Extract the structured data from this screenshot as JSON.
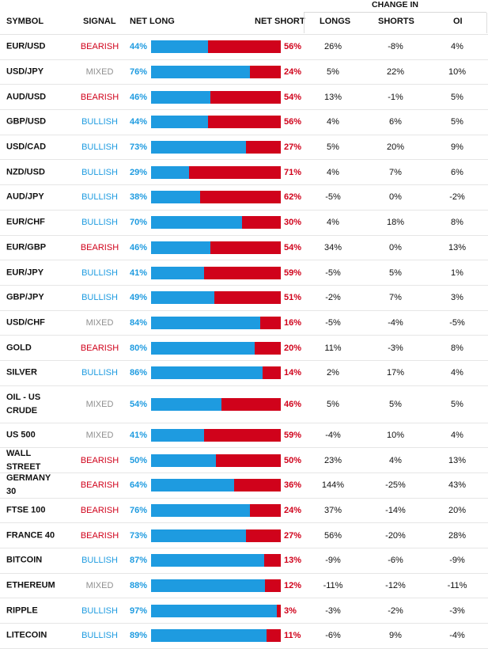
{
  "colors": {
    "bullish": "#1e9be0",
    "bearish": "#d0021b",
    "mixed": "#8f8f8f"
  },
  "header": {
    "symbol": "SYMBOL",
    "signal": "SIGNAL",
    "net_long": "NET LONG",
    "net_short": "NET SHORT",
    "change_in": "CHANGE IN",
    "longs": "LONGS",
    "shorts": "SHORTS",
    "oi": "OI"
  },
  "rows": [
    {
      "symbol": "EUR/USD",
      "signal": "BEARISH",
      "net_long": "44%",
      "net_short": "56%",
      "long_pct": 44,
      "longs": "26%",
      "shorts": "-8%",
      "oi": "4%"
    },
    {
      "symbol": "USD/JPY",
      "signal": "MIXED",
      "net_long": "76%",
      "net_short": "24%",
      "long_pct": 76,
      "longs": "5%",
      "shorts": "22%",
      "oi": "10%"
    },
    {
      "symbol": "AUD/USD",
      "signal": "BEARISH",
      "net_long": "46%",
      "net_short": "54%",
      "long_pct": 46,
      "longs": "13%",
      "shorts": "-1%",
      "oi": "5%"
    },
    {
      "symbol": "GBP/USD",
      "signal": "BULLISH",
      "net_long": "44%",
      "net_short": "56%",
      "long_pct": 44,
      "longs": "4%",
      "shorts": "6%",
      "oi": "5%"
    },
    {
      "symbol": "USD/CAD",
      "signal": "BULLISH",
      "net_long": "73%",
      "net_short": "27%",
      "long_pct": 73,
      "longs": "5%",
      "shorts": "20%",
      "oi": "9%"
    },
    {
      "symbol": "NZD/USD",
      "signal": "BULLISH",
      "net_long": "29%",
      "net_short": "71%",
      "long_pct": 29,
      "longs": "4%",
      "shorts": "7%",
      "oi": "6%"
    },
    {
      "symbol": "AUD/JPY",
      "signal": "BULLISH",
      "net_long": "38%",
      "net_short": "62%",
      "long_pct": 38,
      "longs": "-5%",
      "shorts": "0%",
      "oi": "-2%"
    },
    {
      "symbol": "EUR/CHF",
      "signal": "BULLISH",
      "net_long": "70%",
      "net_short": "30%",
      "long_pct": 70,
      "longs": "4%",
      "shorts": "18%",
      "oi": "8%"
    },
    {
      "symbol": "EUR/GBP",
      "signal": "BEARISH",
      "net_long": "46%",
      "net_short": "54%",
      "long_pct": 46,
      "longs": "34%",
      "shorts": "0%",
      "oi": "13%"
    },
    {
      "symbol": "EUR/JPY",
      "signal": "BULLISH",
      "net_long": "41%",
      "net_short": "59%",
      "long_pct": 41,
      "longs": "-5%",
      "shorts": "5%",
      "oi": "1%"
    },
    {
      "symbol": "GBP/JPY",
      "signal": "BULLISH",
      "net_long": "49%",
      "net_short": "51%",
      "long_pct": 49,
      "longs": "-2%",
      "shorts": "7%",
      "oi": "3%"
    },
    {
      "symbol": "USD/CHF",
      "signal": "MIXED",
      "net_long": "84%",
      "net_short": "16%",
      "long_pct": 84,
      "longs": "-5%",
      "shorts": "-4%",
      "oi": "-5%"
    },
    {
      "symbol": "GOLD",
      "signal": "BEARISH",
      "net_long": "80%",
      "net_short": "20%",
      "long_pct": 80,
      "longs": "11%",
      "shorts": "-3%",
      "oi": "8%"
    },
    {
      "symbol": "SILVER",
      "signal": "BULLISH",
      "net_long": "86%",
      "net_short": "14%",
      "long_pct": 86,
      "longs": "2%",
      "shorts": "17%",
      "oi": "4%"
    },
    {
      "symbol": "OIL - US CRUDE",
      "signal": "MIXED",
      "net_long": "54%",
      "net_short": "46%",
      "long_pct": 54,
      "longs": "5%",
      "shorts": "5%",
      "oi": "5%"
    },
    {
      "symbol": "US 500",
      "signal": "MIXED",
      "net_long": "41%",
      "net_short": "59%",
      "long_pct": 41,
      "longs": "-4%",
      "shorts": "10%",
      "oi": "4%"
    },
    {
      "symbol": "WALL STREET",
      "signal": "BEARISH",
      "net_long": "50%",
      "net_short": "50%",
      "long_pct": 50,
      "longs": "23%",
      "shorts": "4%",
      "oi": "13%"
    },
    {
      "symbol": "GERMANY 30",
      "signal": "BEARISH",
      "net_long": "64%",
      "net_short": "36%",
      "long_pct": 64,
      "longs": "144%",
      "shorts": "-25%",
      "oi": "43%"
    },
    {
      "symbol": "FTSE 100",
      "signal": "BEARISH",
      "net_long": "76%",
      "net_short": "24%",
      "long_pct": 76,
      "longs": "37%",
      "shorts": "-14%",
      "oi": "20%"
    },
    {
      "symbol": "FRANCE 40",
      "signal": "BEARISH",
      "net_long": "73%",
      "net_short": "27%",
      "long_pct": 73,
      "longs": "56%",
      "shorts": "-20%",
      "oi": "28%"
    },
    {
      "symbol": "BITCOIN",
      "signal": "BULLISH",
      "net_long": "87%",
      "net_short": "13%",
      "long_pct": 87,
      "longs": "-9%",
      "shorts": "-6%",
      "oi": "-9%"
    },
    {
      "symbol": "ETHEREUM",
      "signal": "MIXED",
      "net_long": "88%",
      "net_short": "12%",
      "long_pct": 88,
      "longs": "-11%",
      "shorts": "-12%",
      "oi": "-11%"
    },
    {
      "symbol": "RIPPLE",
      "signal": "BULLISH",
      "net_long": "97%",
      "net_short": "3%",
      "long_pct": 97,
      "longs": "-3%",
      "shorts": "-2%",
      "oi": "-3%"
    },
    {
      "symbol": "LITECOIN",
      "signal": "BULLISH",
      "net_long": "89%",
      "net_short": "11%",
      "long_pct": 89,
      "longs": "-6%",
      "shorts": "9%",
      "oi": "-4%"
    }
  ]
}
